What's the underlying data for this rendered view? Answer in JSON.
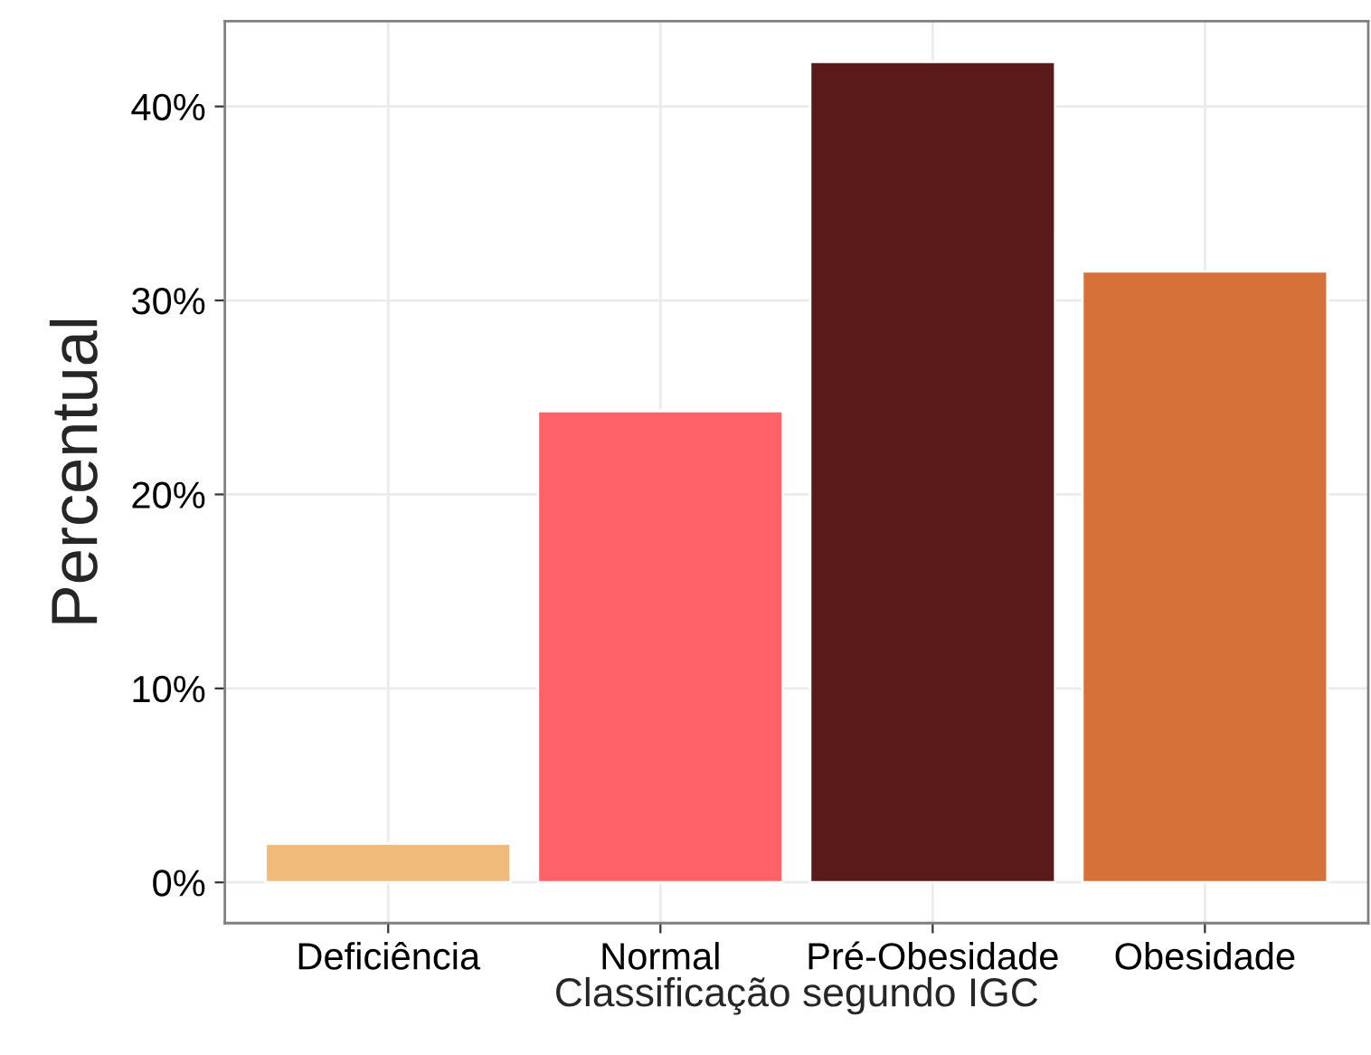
{
  "chart_data": {
    "type": "bar",
    "categories": [
      "Deficiência",
      "Normal",
      "Pré-Obesidade",
      "Obesidade"
    ],
    "values": [
      2.0,
      24.3,
      42.3,
      31.5
    ],
    "colors": [
      "#efba7a",
      "#fe6167",
      "#5b1a1a",
      "#d67238"
    ],
    "xlabel": "Classificação segundo IGC",
    "ylabel": "Percentual",
    "ylim": [
      -2.1,
      44.4
    ],
    "yticks": [
      {
        "value": 0,
        "label": "0%"
      },
      {
        "value": 10,
        "label": "10%"
      },
      {
        "value": 20,
        "label": "20%"
      },
      {
        "value": 30,
        "label": "30%"
      },
      {
        "value": 40,
        "label": "40%"
      }
    ],
    "grid": true,
    "legend": false
  }
}
